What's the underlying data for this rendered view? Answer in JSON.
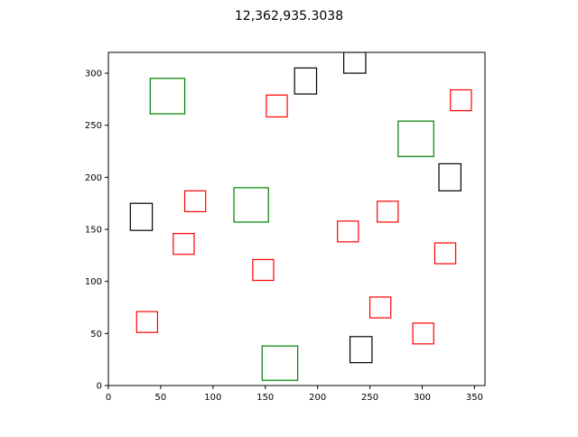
{
  "chart_data": {
    "type": "scatter",
    "title": "12,362,935.3038",
    "xlabel": "",
    "ylabel": "",
    "xlim": [
      0,
      360
    ],
    "ylim": [
      0,
      320
    ],
    "x_ticks": [
      0,
      50,
      100,
      150,
      200,
      250,
      300,
      350
    ],
    "y_ticks": [
      0,
      50,
      100,
      150,
      200,
      250,
      300
    ],
    "grid": false,
    "legend": "none",
    "marker": "square-outline",
    "colors": {
      "red": "#ff0000",
      "green": "#008000",
      "black": "#000000"
    },
    "rectangles": [
      {
        "color": "green",
        "x0": 40,
        "x1": 73,
        "y0": 261,
        "y1": 295
      },
      {
        "color": "green",
        "x0": 120,
        "x1": 153,
        "y0": 157,
        "y1": 190
      },
      {
        "color": "green",
        "x0": 147,
        "x1": 181,
        "y0": 5,
        "y1": 38
      },
      {
        "color": "green",
        "x0": 277,
        "x1": 311,
        "y0": 220,
        "y1": 254
      },
      {
        "color": "black",
        "x0": 178,
        "x1": 199,
        "y0": 280,
        "y1": 305
      },
      {
        "color": "black",
        "x0": 225,
        "x1": 246,
        "y0": 300,
        "y1": 320
      },
      {
        "color": "black",
        "x0": 21,
        "x1": 42,
        "y0": 149,
        "y1": 175
      },
      {
        "color": "black",
        "x0": 316,
        "x1": 337,
        "y0": 187,
        "y1": 213
      },
      {
        "color": "black",
        "x0": 231,
        "x1": 252,
        "y0": 22,
        "y1": 47
      },
      {
        "color": "red",
        "x0": 151,
        "x1": 171,
        "y0": 258,
        "y1": 279
      },
      {
        "color": "red",
        "x0": 327,
        "x1": 347,
        "y0": 264,
        "y1": 284
      },
      {
        "color": "red",
        "x0": 73,
        "x1": 93,
        "y0": 167,
        "y1": 187
      },
      {
        "color": "red",
        "x0": 62,
        "x1": 82,
        "y0": 126,
        "y1": 146
      },
      {
        "color": "red",
        "x0": 219,
        "x1": 239,
        "y0": 138,
        "y1": 158
      },
      {
        "color": "red",
        "x0": 257,
        "x1": 277,
        "y0": 157,
        "y1": 177
      },
      {
        "color": "red",
        "x0": 138,
        "x1": 158,
        "y0": 101,
        "y1": 121
      },
      {
        "color": "red",
        "x0": 312,
        "x1": 332,
        "y0": 117,
        "y1": 137
      },
      {
        "color": "red",
        "x0": 27,
        "x1": 47,
        "y0": 51,
        "y1": 71
      },
      {
        "color": "red",
        "x0": 250,
        "x1": 270,
        "y0": 65,
        "y1": 85
      },
      {
        "color": "red",
        "x0": 291,
        "x1": 311,
        "y0": 40,
        "y1": 60
      }
    ]
  }
}
